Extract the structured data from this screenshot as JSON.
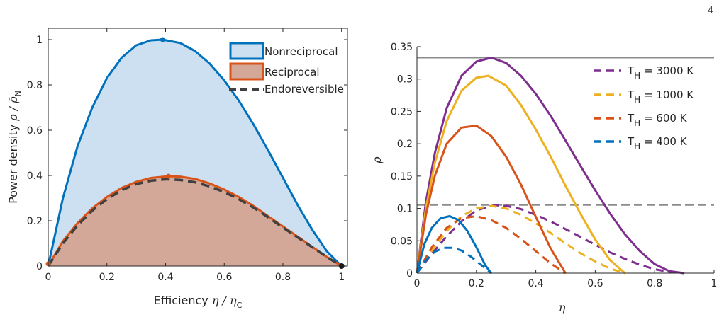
{
  "page_number": "4",
  "colors": {
    "nonreciprocal": "#0072BD",
    "nonreciprocal_fill": "#CCE0F1",
    "reciprocal": "#D95319",
    "reciprocal_fill": "#D4A898",
    "endoreversible": "#404040",
    "purple": "#7E2F8E",
    "yellow": "#EDB120",
    "orange": "#D95319",
    "blue": "#0072BD",
    "gray_line": "#8C8C8C",
    "axis": "#262626"
  },
  "chart_data": [
    {
      "type": "area",
      "xlabel": "Efficiency η / η_C",
      "ylabel": "Power density ρ / ρ̄_N",
      "xlim": [
        0,
        1.02
      ],
      "ylim": [
        0,
        1.05
      ],
      "xticks": [
        "0",
        "0.2",
        "0.4",
        "0.6",
        "0.8",
        "1"
      ],
      "xtick_values": [
        0,
        0.2,
        0.4,
        0.6,
        0.8,
        1
      ],
      "yticks": [
        "0",
        "0.2",
        "0.4",
        "0.6",
        "0.8",
        "1"
      ],
      "ytick_values": [
        0,
        0.2,
        0.4,
        0.6,
        0.8,
        1
      ],
      "grid": false,
      "legend_position": "top-right",
      "series": [
        {
          "name": "Nonreciprocal",
          "style": "filled-area",
          "x": [
            0,
            0.05,
            0.1,
            0.15,
            0.2,
            0.25,
            0.3,
            0.35,
            0.39,
            0.45,
            0.5,
            0.55,
            0.6,
            0.65,
            0.7,
            0.75,
            0.8,
            0.85,
            0.9,
            0.95,
            1.0
          ],
          "y": [
            0,
            0.3,
            0.53,
            0.7,
            0.83,
            0.92,
            0.975,
            0.997,
            1.0,
            0.985,
            0.95,
            0.895,
            0.82,
            0.73,
            0.625,
            0.51,
            0.39,
            0.27,
            0.16,
            0.065,
            0
          ]
        },
        {
          "name": "Reciprocal",
          "style": "filled-area",
          "x": [
            0,
            0.05,
            0.1,
            0.15,
            0.2,
            0.25,
            0.3,
            0.35,
            0.41,
            0.45,
            0.5,
            0.55,
            0.6,
            0.65,
            0.7,
            0.75,
            0.8,
            0.85,
            0.9,
            0.95,
            1.0
          ],
          "y": [
            0,
            0.11,
            0.19,
            0.255,
            0.305,
            0.345,
            0.372,
            0.389,
            0.397,
            0.395,
            0.385,
            0.365,
            0.338,
            0.305,
            0.265,
            0.22,
            0.175,
            0.13,
            0.085,
            0.04,
            0
          ]
        },
        {
          "name": "Endoreversible",
          "style": "dashed",
          "x": [
            0,
            0.05,
            0.1,
            0.15,
            0.2,
            0.25,
            0.3,
            0.35,
            0.4,
            0.45,
            0.5,
            0.55,
            0.6,
            0.65,
            0.7,
            0.75,
            0.8,
            0.85,
            0.9,
            0.95,
            1.0
          ],
          "y": [
            0,
            0.1,
            0.18,
            0.245,
            0.295,
            0.335,
            0.362,
            0.377,
            0.383,
            0.38,
            0.37,
            0.352,
            0.327,
            0.295,
            0.258,
            0.215,
            0.17,
            0.127,
            0.083,
            0.04,
            0
          ]
        }
      ],
      "markers": [
        {
          "series": "Nonreciprocal",
          "x": 0.39,
          "y": 1.0
        },
        {
          "series": "Reciprocal",
          "x": 0.41,
          "y": 0.397
        },
        {
          "series": "end",
          "x": 1.0,
          "y": 0
        },
        {
          "series": "start",
          "x": 0,
          "y": 0.01
        }
      ]
    },
    {
      "type": "line",
      "xlabel": "η",
      "ylabel": "ρ",
      "xlim": [
        0,
        1
      ],
      "ylim": [
        0,
        0.35
      ],
      "xticks": [
        "0",
        "0.2",
        "0.4",
        "0.6",
        "0.8",
        "1"
      ],
      "xtick_values": [
        0,
        0.2,
        0.4,
        0.6,
        0.8,
        1
      ],
      "yticks": [
        "0",
        "0.05",
        "0.1",
        "0.15",
        "0.2",
        "0.25",
        "0.3",
        "0.35"
      ],
      "ytick_values": [
        0,
        0.05,
        0.1,
        0.15,
        0.2,
        0.25,
        0.3,
        0.35
      ],
      "grid": false,
      "legend_position": "top-right",
      "hlines": [
        {
          "y": 0.3333,
          "style": "solid"
        },
        {
          "y": 0.1055,
          "style": "dashed"
        }
      ],
      "series": [
        {
          "name": "T_H = 3000 K",
          "color_key": "purple",
          "solid": {
            "x": [
              0,
              0.03,
              0.06,
              0.1,
              0.15,
              0.2,
              0.25,
              0.3,
              0.35,
              0.4,
              0.45,
              0.5,
              0.55,
              0.6,
              0.65,
              0.7,
              0.75,
              0.8,
              0.85,
              0.9
            ],
            "y": [
              0,
              0.11,
              0.185,
              0.255,
              0.305,
              0.327,
              0.333,
              0.325,
              0.305,
              0.277,
              0.243,
              0.205,
              0.166,
              0.128,
              0.092,
              0.06,
              0.034,
              0.014,
              0.003,
              0
            ]
          },
          "dashed": {
            "x": [
              0,
              0.05,
              0.1,
              0.15,
              0.2,
              0.26,
              0.3,
              0.35,
              0.4,
              0.45,
              0.5,
              0.55,
              0.6,
              0.65,
              0.7,
              0.75,
              0.8,
              0.85,
              0.9
            ],
            "y": [
              0,
              0.03,
              0.057,
              0.08,
              0.097,
              0.105,
              0.104,
              0.099,
              0.09,
              0.08,
              0.068,
              0.056,
              0.044,
              0.032,
              0.022,
              0.013,
              0.006,
              0.002,
              0
            ]
          }
        },
        {
          "name": "T_H = 1000 K",
          "color_key": "yellow",
          "solid": {
            "x": [
              0,
              0.03,
              0.06,
              0.1,
              0.15,
              0.2,
              0.24,
              0.3,
              0.35,
              0.4,
              0.45,
              0.5,
              0.55,
              0.6,
              0.65,
              0.7
            ],
            "y": [
              0,
              0.1,
              0.17,
              0.235,
              0.282,
              0.302,
              0.305,
              0.29,
              0.26,
              0.222,
              0.18,
              0.135,
              0.092,
              0.052,
              0.02,
              0
            ]
          },
          "dashed": {
            "x": [
              0,
              0.05,
              0.1,
              0.15,
              0.2,
              0.25,
              0.3,
              0.35,
              0.4,
              0.45,
              0.5,
              0.55,
              0.6,
              0.65,
              0.7
            ],
            "y": [
              0,
              0.035,
              0.065,
              0.088,
              0.1,
              0.104,
              0.1,
              0.09,
              0.077,
              0.062,
              0.046,
              0.031,
              0.018,
              0.007,
              0
            ]
          }
        },
        {
          "name": "T_H = 600 K",
          "color_key": "orange",
          "solid": {
            "x": [
              0,
              0.03,
              0.06,
              0.1,
              0.15,
              0.2,
              0.25,
              0.3,
              0.35,
              0.4,
              0.45,
              0.5
            ],
            "y": [
              0,
              0.09,
              0.15,
              0.2,
              0.225,
              0.228,
              0.212,
              0.18,
              0.137,
              0.087,
              0.038,
              0
            ]
          },
          "dashed": {
            "x": [
              0,
              0.05,
              0.1,
              0.15,
              0.2,
              0.25,
              0.3,
              0.35,
              0.4,
              0.45,
              0.5
            ],
            "y": [
              0,
              0.04,
              0.07,
              0.085,
              0.088,
              0.082,
              0.07,
              0.053,
              0.034,
              0.015,
              0
            ]
          }
        },
        {
          "name": "T_H = 400 K",
          "color_key": "blue",
          "solid": {
            "x": [
              0,
              0.025,
              0.05,
              0.08,
              0.11,
              0.14,
              0.17,
              0.2,
              0.23,
              0.25
            ],
            "y": [
              0,
              0.045,
              0.07,
              0.085,
              0.088,
              0.082,
              0.065,
              0.04,
              0.012,
              0
            ]
          },
          "dashed": {
            "x": [
              0,
              0.03,
              0.06,
              0.09,
              0.12,
              0.15,
              0.18,
              0.21,
              0.25
            ],
            "y": [
              0,
              0.02,
              0.033,
              0.039,
              0.039,
              0.035,
              0.026,
              0.015,
              0
            ]
          }
        }
      ]
    }
  ]
}
